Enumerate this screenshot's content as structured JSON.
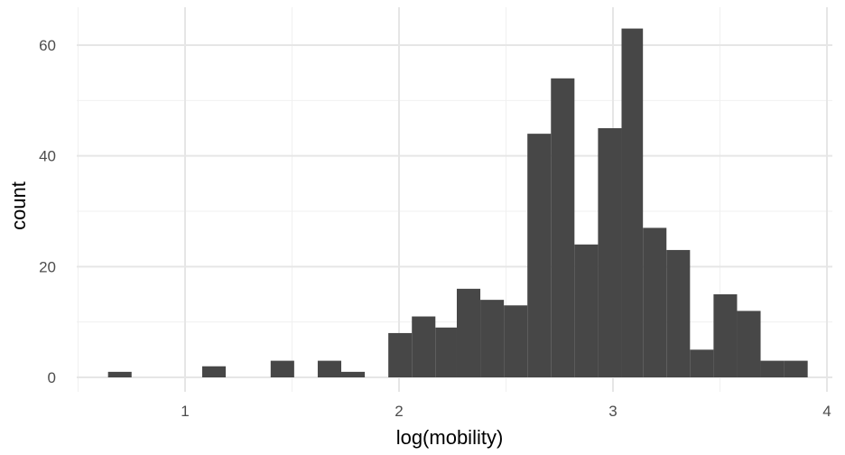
{
  "chart_data": {
    "type": "histogram",
    "title": "",
    "xlabel": "log(mobility)",
    "ylabel": "count",
    "xlim": [
      0.5,
      4.05
    ],
    "ylim": [
      0,
      66
    ],
    "x_ticks": [
      1,
      2,
      3,
      4
    ],
    "x_tick_labels": [
      "1",
      "2",
      "3",
      "4"
    ],
    "y_ticks": [
      0,
      20,
      40,
      60
    ],
    "y_tick_labels": [
      "0",
      "20",
      "40",
      "60"
    ],
    "grid": true,
    "legend": "none",
    "bar_color": "#474747",
    "bins": [
      {
        "x0": 0.64,
        "x1": 0.75,
        "count": 1
      },
      {
        "x0": 0.75,
        "x1": 0.86,
        "count": 0
      },
      {
        "x0": 0.86,
        "x1": 0.97,
        "count": 0
      },
      {
        "x0": 0.97,
        "x1": 1.08,
        "count": 0
      },
      {
        "x0": 1.08,
        "x1": 1.19,
        "count": 2
      },
      {
        "x0": 1.19,
        "x1": 1.3,
        "count": 0
      },
      {
        "x0": 1.3,
        "x1": 1.4,
        "count": 0
      },
      {
        "x0": 1.4,
        "x1": 1.51,
        "count": 3
      },
      {
        "x0": 1.51,
        "x1": 1.62,
        "count": 0
      },
      {
        "x0": 1.62,
        "x1": 1.73,
        "count": 3
      },
      {
        "x0": 1.73,
        "x1": 1.84,
        "count": 1
      },
      {
        "x0": 1.84,
        "x1": 1.95,
        "count": 0
      },
      {
        "x0": 1.95,
        "x1": 2.06,
        "count": 8
      },
      {
        "x0": 2.06,
        "x1": 2.17,
        "count": 11
      },
      {
        "x0": 2.17,
        "x1": 2.27,
        "count": 9
      },
      {
        "x0": 2.27,
        "x1": 2.38,
        "count": 16
      },
      {
        "x0": 2.38,
        "x1": 2.49,
        "count": 14
      },
      {
        "x0": 2.49,
        "x1": 2.6,
        "count": 13
      },
      {
        "x0": 2.6,
        "x1": 2.71,
        "count": 44
      },
      {
        "x0": 2.71,
        "x1": 2.82,
        "count": 54
      },
      {
        "x0": 2.82,
        "x1": 2.93,
        "count": 24
      },
      {
        "x0": 2.93,
        "x1": 3.04,
        "count": 45
      },
      {
        "x0": 3.04,
        "x1": 3.14,
        "count": 63
      },
      {
        "x0": 3.14,
        "x1": 3.25,
        "count": 27
      },
      {
        "x0": 3.25,
        "x1": 3.36,
        "count": 23
      },
      {
        "x0": 3.36,
        "x1": 3.47,
        "count": 5
      },
      {
        "x0": 3.47,
        "x1": 3.58,
        "count": 15
      },
      {
        "x0": 3.58,
        "x1": 3.69,
        "count": 12
      },
      {
        "x0": 3.69,
        "x1": 3.8,
        "count": 3
      },
      {
        "x0": 3.8,
        "x1": 3.91,
        "count": 3
      }
    ]
  }
}
